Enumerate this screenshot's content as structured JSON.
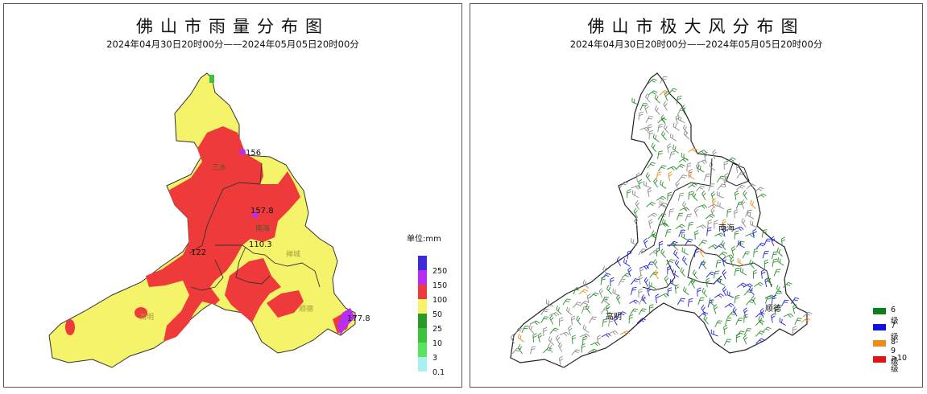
{
  "rain_map": {
    "title": "佛山市雨量分布图",
    "subtitle": "2024年04月30日20时00分——2024年05月05日20时00分",
    "district_labels": [
      "三水",
      "南海",
      "禅城",
      "顺德",
      "高明"
    ],
    "station_values": [
      "156",
      "157.8",
      "110.3",
      "122",
      "177.8"
    ],
    "legend": {
      "unit": "单位:mm",
      "levels": [
        {
          "label": "250",
          "color": "#3d2bdb"
        },
        {
          "label": "150",
          "color": "#b72df2"
        },
        {
          "label": "100",
          "color": "#ee3a3a"
        },
        {
          "label": "50",
          "color": "#f5f36a"
        },
        {
          "label": "25",
          "color": "#2a9a2a"
        },
        {
          "label": "10",
          "color": "#3cc23c"
        },
        {
          "label": "3",
          "color": "#59e35f"
        },
        {
          "label": "0.1",
          "color": "#a8f1f1"
        }
      ]
    }
  },
  "wind_map": {
    "title": "佛山市极大风分布图",
    "subtitle": "2024年04月30日20时00分——2024年05月05日20时00分",
    "district_labels": [
      "南海",
      "高明",
      "顺德"
    ],
    "legend": [
      {
        "label": "6级",
        "color": "#0d7f1a"
      },
      {
        "label": "7级",
        "color": "#1010e6"
      },
      {
        "label": "8-9级",
        "color": "#f08a18"
      },
      {
        "label": "≥10级",
        "color": "#e81010"
      }
    ]
  }
}
